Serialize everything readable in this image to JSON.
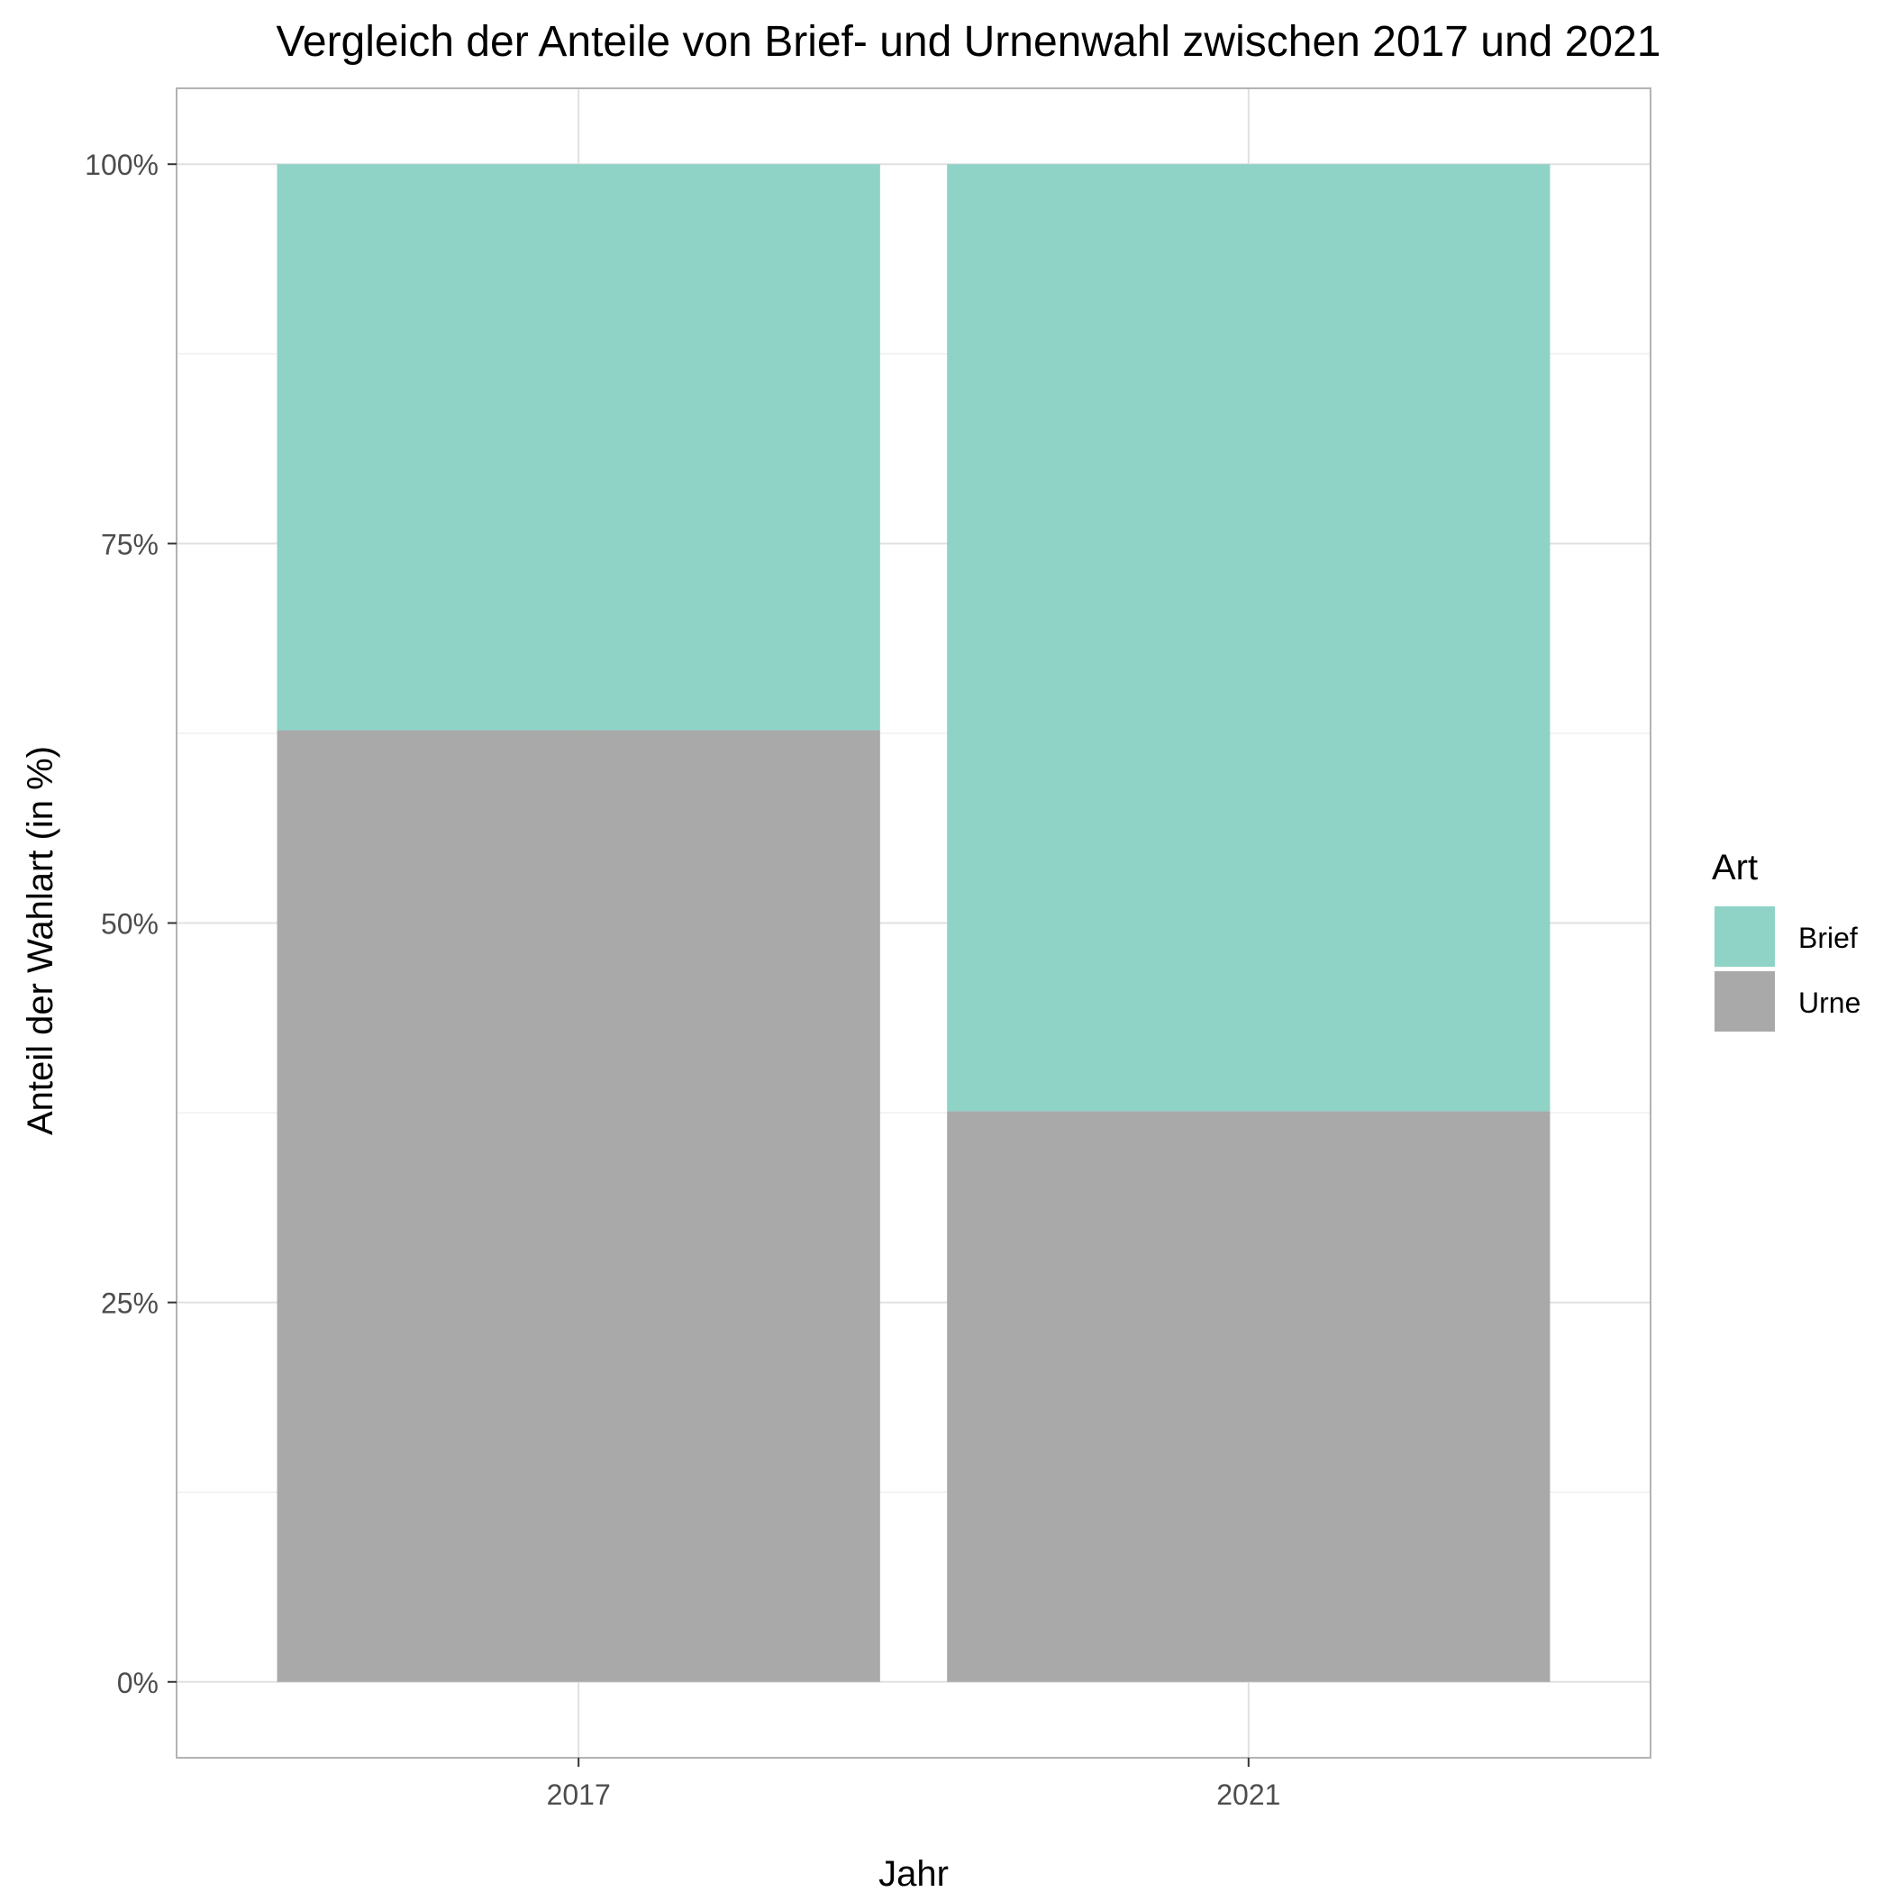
{
  "chart_data": {
    "type": "bar",
    "stacked": true,
    "title": "Vergleich der Anteile von Brief- und Urnenwahl zwischen 2017 und 2021",
    "xlabel": "Jahr",
    "ylabel": "Anteil der Wahlart (in %)",
    "categories": [
      "2017",
      "2021"
    ],
    "series": [
      {
        "name": "Urne",
        "values": [
          62.7,
          37.6
        ],
        "color": "#a9a9a9"
      },
      {
        "name": "Brief",
        "values": [
          37.3,
          62.4
        ],
        "color": "#8fd2c6"
      }
    ],
    "ylim": [
      -5,
      105
    ],
    "y_ticks": [
      0,
      25,
      50,
      75,
      100
    ],
    "y_tick_labels": [
      "0%",
      "25%",
      "50%",
      "75%",
      "100%"
    ],
    "grid": true,
    "legend": {
      "title": "Art",
      "position": "right",
      "entries": [
        "Brief",
        "Urne"
      ]
    }
  }
}
